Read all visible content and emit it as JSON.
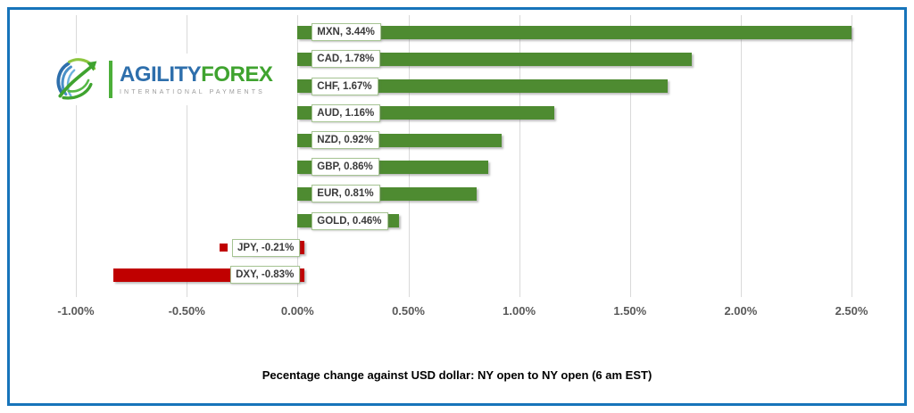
{
  "frame": {
    "border_color": "#1774ba",
    "background": "#ffffff"
  },
  "logo": {
    "brand_part1": "AGILITY",
    "brand_part2": "FOREX",
    "tagline": "INTERNATIONAL PAYMENTS",
    "colors": {
      "part1": "#2e6fac",
      "part2": "#3fa32f",
      "tagline": "#9b9b9b",
      "globe_dark_blue": "#2e6fac",
      "globe_light_blue": "#5ea7d8",
      "globe_dark_green": "#3fa32f",
      "globe_light_green": "#8dc63f"
    }
  },
  "chart_data": {
    "type": "bar",
    "orientation": "horizontal",
    "title": "Pecentage change against USD dollar: NY open to NY open  (6 am EST)",
    "categories": [
      "MXN",
      "CAD",
      "CHF",
      "AUD",
      "NZD",
      "GBP",
      "EUR",
      "GOLD",
      "JPY",
      "DXY"
    ],
    "values": [
      3.44,
      1.78,
      1.67,
      1.16,
      0.92,
      0.86,
      0.81,
      0.46,
      -0.21,
      -0.83
    ],
    "data_labels": [
      "MXN, 3.44%",
      "CAD, 1.78%",
      "CHF, 1.67%",
      "AUD, 1.16%",
      "NZD, 0.92%",
      "GBP, 0.86%",
      "EUR, 0.81%",
      "GOLD, 0.46%",
      "JPY, -0.21%",
      "DXY, -0.83%"
    ],
    "x_ticks": [
      {
        "label": "-1.00%",
        "value": -1.0
      },
      {
        "label": "-0.50%",
        "value": -0.5
      },
      {
        "label": "0.00%",
        "value": 0.0
      },
      {
        "label": "0.50%",
        "value": 0.5
      },
      {
        "label": "1.00%",
        "value": 1.0
      },
      {
        "label": "1.50%",
        "value": 1.5
      },
      {
        "label": "2.00%",
        "value": 2.0
      },
      {
        "label": "2.50%",
        "value": 2.5
      }
    ],
    "axis_clip_max": 2.5,
    "grid": true,
    "legend_position": "none",
    "positive_color": "#4e8b31",
    "negative_color": "#c00000",
    "label_border_color": "#a6c493",
    "gridline_color": "#d9d9d9",
    "tick_color": "#595959",
    "legend_key_items": [
      "JPY"
    ]
  }
}
